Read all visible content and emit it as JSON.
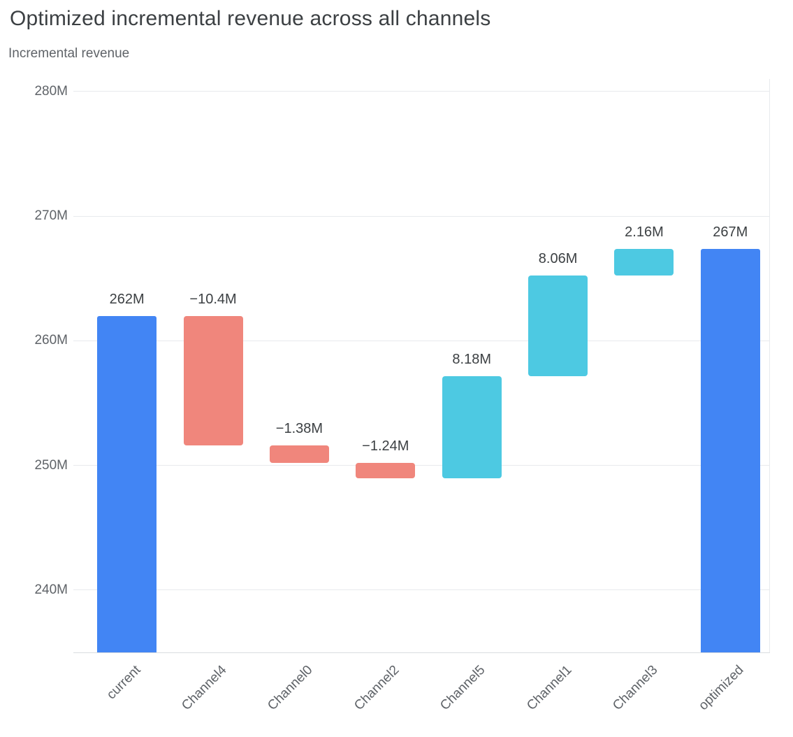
{
  "header": {
    "title": "Optimized incremental revenue across all channels",
    "subtitle": "Incremental revenue"
  },
  "chart_data": {
    "type": "bar",
    "subtype": "waterfall",
    "title": "Optimized incremental revenue across all channels",
    "ylabel": "Incremental revenue",
    "unit": "M",
    "ylim": [
      235,
      281
    ],
    "y_ticks": [
      {
        "value": 280,
        "label": "280M"
      },
      {
        "value": 270,
        "label": "270M"
      },
      {
        "value": 260,
        "label": "260M"
      },
      {
        "value": 250,
        "label": "250M"
      },
      {
        "value": 240,
        "label": "240M"
      }
    ],
    "grid": true,
    "legend": false,
    "colors": {
      "total": "#4285f4",
      "increase": "#4dc9e2",
      "decrease": "#f0867c"
    },
    "bars": [
      {
        "name": "current",
        "kind": "total",
        "value": 262.0,
        "label": "262M"
      },
      {
        "name": "Channel4",
        "kind": "decrease",
        "value": -10.4,
        "label": "−10.4M"
      },
      {
        "name": "Channel0",
        "kind": "decrease",
        "value": -1.38,
        "label": "−1.38M"
      },
      {
        "name": "Channel2",
        "kind": "decrease",
        "value": -1.24,
        "label": "−1.24M"
      },
      {
        "name": "Channel5",
        "kind": "increase",
        "value": 8.18,
        "label": "8.18M"
      },
      {
        "name": "Channel1",
        "kind": "increase",
        "value": 8.06,
        "label": "8.06M"
      },
      {
        "name": "Channel3",
        "kind": "increase",
        "value": 2.16,
        "label": "2.16M"
      },
      {
        "name": "optimized",
        "kind": "total",
        "value": 267.38,
        "label": "267M"
      }
    ]
  }
}
